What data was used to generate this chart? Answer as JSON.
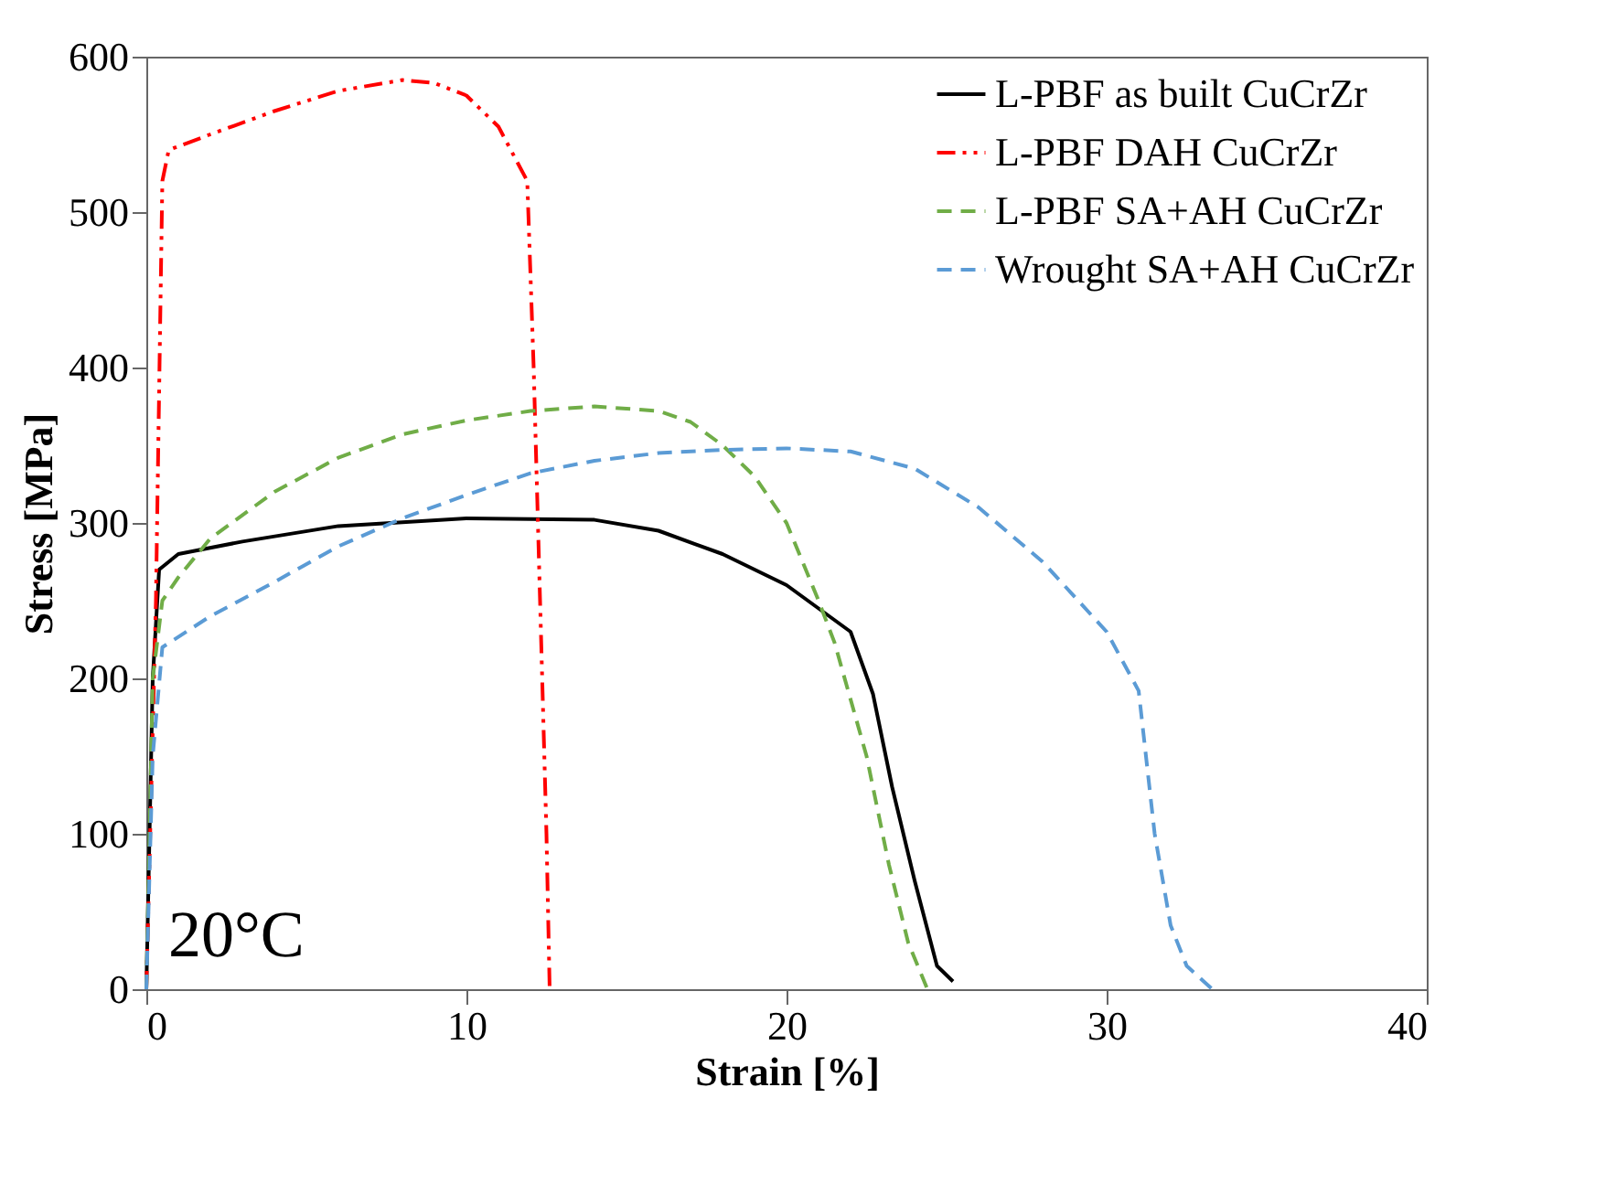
{
  "chart_data": {
    "type": "line",
    "xlabel": "Strain [%]",
    "ylabel": "Stress [MPa]",
    "xlim": [
      0,
      40
    ],
    "ylim": [
      0,
      600
    ],
    "xticks": [
      0,
      10,
      20,
      30,
      40
    ],
    "yticks": [
      0,
      100,
      200,
      300,
      400,
      500,
      600
    ],
    "grid": false,
    "legend": "top right",
    "marker": "none",
    "annotations": [
      "20°C"
    ],
    "series": [
      {
        "name": "L-PBF as built CuCrZr",
        "color": "#000000",
        "line_style": "solid",
        "x": [
          0,
          0.2,
          0.4,
          1,
          3,
          6,
          10,
          14,
          16,
          18,
          20,
          22,
          22.7,
          23.3,
          24,
          24.7,
          25.2
        ],
        "values": [
          0,
          200,
          270,
          280,
          288,
          298,
          303,
          302,
          295,
          280,
          260,
          230,
          190,
          130,
          70,
          15,
          5
        ]
      },
      {
        "name": "L-PBF DAH CuCrZr",
        "color": "#ff0000",
        "line_style": "dashdot",
        "x": [
          0,
          0.3,
          0.5,
          0.7,
          2,
          4,
          6,
          8,
          9,
          10,
          11,
          11.9,
          12.1,
          12.3,
          12.5,
          12.6
        ],
        "values": [
          0,
          250,
          520,
          540,
          550,
          565,
          578,
          585,
          583,
          575,
          555,
          520,
          400,
          250,
          100,
          0
        ]
      },
      {
        "name": "L-PBF SA+AH CuCrZr",
        "color": "#70ad47",
        "line_style": "dashed",
        "x": [
          0,
          0.2,
          0.5,
          1,
          2,
          4,
          6,
          8,
          10,
          12,
          14,
          16,
          17,
          18,
          19,
          20,
          21,
          21.5,
          22.5,
          23.2,
          23.8,
          24.4
        ],
        "values": [
          0,
          200,
          250,
          265,
          290,
          320,
          342,
          357,
          366,
          372,
          375,
          372,
          365,
          350,
          330,
          300,
          250,
          223,
          150,
          80,
          30,
          0
        ]
      },
      {
        "name": "Wrought SA+AH CuCrZr",
        "color": "#5b9bd5",
        "line_style": "dashed",
        "x": [
          0,
          0.2,
          0.5,
          2,
          4,
          6,
          8,
          10,
          12,
          14,
          16,
          18,
          20,
          22,
          24,
          26,
          28,
          30,
          31,
          31.5,
          32,
          32.5,
          33.3
        ],
        "values": [
          0,
          150,
          220,
          240,
          262,
          285,
          303,
          318,
          332,
          340,
          345,
          347,
          348,
          346,
          335,
          310,
          275,
          230,
          192,
          100,
          41,
          15,
          0
        ]
      }
    ]
  }
}
